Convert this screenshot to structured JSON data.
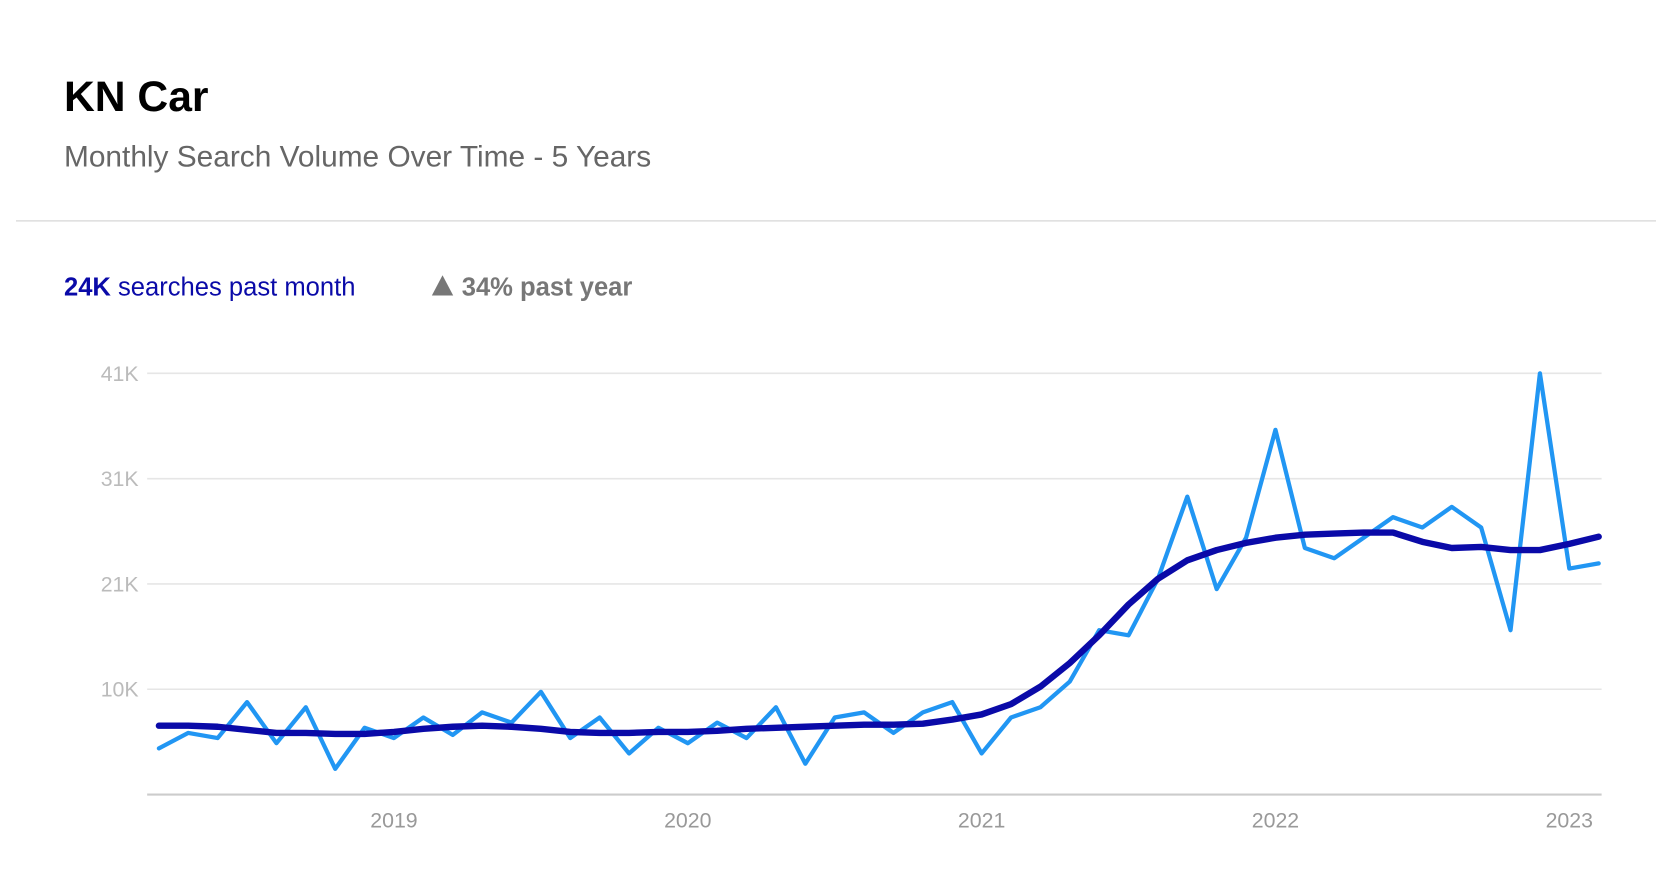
{
  "header": {
    "title": "KN Car",
    "subtitle": "Monthly Search Volume Over Time - 5 Years"
  },
  "stats": {
    "month_value": "24K",
    "month_text": "searches past month",
    "year_value": "34%",
    "year_text": "past year"
  },
  "chart_data": {
    "type": "line",
    "x": [
      2018.2,
      2018.3,
      2018.4,
      2018.5,
      2018.6,
      2018.7,
      2018.8,
      2018.9,
      2019.0,
      2019.1,
      2019.2,
      2019.3,
      2019.4,
      2019.5,
      2019.6,
      2019.7,
      2019.8,
      2019.9,
      2020.0,
      2020.1,
      2020.2,
      2020.3,
      2020.4,
      2020.5,
      2020.6,
      2020.7,
      2020.8,
      2020.9,
      2021.0,
      2021.1,
      2021.2,
      2021.3,
      2021.4,
      2021.5,
      2021.6,
      2021.7,
      2021.8,
      2021.9,
      2022.0,
      2022.1,
      2022.2,
      2022.3,
      2022.4,
      2022.5,
      2022.6,
      2022.7,
      2022.8,
      2022.9,
      2023.0,
      2023.1
    ],
    "series": [
      {
        "color": "#2196f3",
        "values": [
          4500,
          6000,
          5500,
          9000,
          5000,
          8500,
          2500,
          6500,
          5500,
          7500,
          5800,
          8000,
          7000,
          10000,
          5500,
          7500,
          4000,
          6500,
          5000,
          7000,
          5500,
          8500,
          3000,
          7500,
          8000,
          6000,
          8000,
          9000,
          4000,
          7500,
          8500,
          11000,
          16000,
          15500,
          21000,
          29000,
          20000,
          25000,
          35500,
          24000,
          23000,
          25000,
          27000,
          26000,
          28000,
          26000,
          16000,
          41000,
          22000,
          22500
        ]
      },
      {
        "color": "#0a0aa8",
        "values": [
          6700,
          6700,
          6600,
          6300,
          6000,
          6000,
          5900,
          5900,
          6100,
          6400,
          6600,
          6700,
          6600,
          6400,
          6100,
          6000,
          6000,
          6100,
          6100,
          6200,
          6400,
          6500,
          6600,
          6700,
          6800,
          6800,
          6900,
          7300,
          7800,
          8800,
          10500,
          12800,
          15500,
          18500,
          21000,
          22800,
          23800,
          24500,
          25000,
          25300,
          25400,
          25500,
          25500,
          24600,
          24000,
          24100,
          23800,
          23800,
          24400,
          25100
        ]
      }
    ],
    "xlim": [
      2018.16,
      2023.11
    ],
    "xticks": [
      2019,
      2020,
      2021,
      2022,
      2023
    ],
    "ylim": [
      0,
      41000
    ],
    "yticks": [
      {
        "value": 10250,
        "label": "10K"
      },
      {
        "value": 20500,
        "label": "21K"
      },
      {
        "value": 30750,
        "label": "31K"
      },
      {
        "value": 41000,
        "label": "41K"
      }
    ],
    "grid": true
  }
}
